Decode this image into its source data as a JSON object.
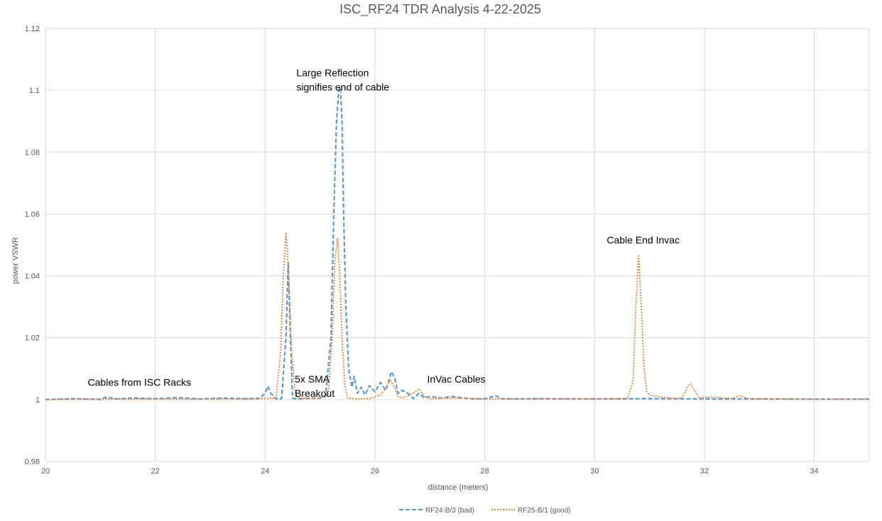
{
  "chart_data": {
    "type": "line",
    "title": "ISC_RF24 TDR Analysis 4-22-2025",
    "xlabel": "distance (meters)",
    "ylabel": "power VSWR",
    "xlim": [
      20,
      35
    ],
    "ylim": [
      0.98,
      1.12
    ],
    "x_ticks": [
      20,
      22,
      24,
      26,
      28,
      30,
      32,
      34
    ],
    "x_tick_labels": [
      "20",
      "22",
      "24",
      "26",
      "28",
      "30",
      "32",
      "34"
    ],
    "y_ticks": [
      0.98,
      1,
      1.02,
      1.04,
      1.06,
      1.08,
      1.1,
      1.12
    ],
    "y_tick_labels": [
      "0.98",
      "1",
      "1.02",
      "1.04",
      "1.06",
      "1.08",
      "1.1",
      "1.12"
    ],
    "grid": true,
    "legend_position": "bottom",
    "series": [
      {
        "name": "RF24-B/3 (bad)",
        "color": "#5B9BD5",
        "style": "dashed",
        "x": [
          20,
          20.5,
          21,
          21.1,
          21.3,
          21.6,
          22,
          22.4,
          22.8,
          23.2,
          23.6,
          23.9,
          24.0,
          24.05,
          24.1,
          24.2,
          24.3,
          24.38,
          24.42,
          24.46,
          24.5,
          24.6,
          24.8,
          25.0,
          25.1,
          25.2,
          25.25,
          25.3,
          25.34,
          25.37,
          25.4,
          25.43,
          25.47,
          25.52,
          25.58,
          25.62,
          25.68,
          25.75,
          25.82,
          25.9,
          26.0,
          26.1,
          26.2,
          26.3,
          26.36,
          26.42,
          26.5,
          26.6,
          26.7,
          26.8,
          26.9,
          27.0,
          27.2,
          27.4,
          27.6,
          27.8,
          28.0,
          28.2,
          28.3,
          28.6,
          29,
          30,
          31,
          32,
          33,
          34,
          35
        ],
        "y": [
          1.0,
          1.0003,
          1.0,
          1.0008,
          1.0002,
          1.0005,
          1.0003,
          1.0006,
          1.0002,
          1.0005,
          1.0003,
          1.0004,
          1.002,
          1.0043,
          1.002,
          1.0002,
          1.0003,
          1.02,
          1.0445,
          1.02,
          1.0004,
          1.0002,
          1.0004,
          1.0005,
          1.001,
          1.02,
          1.06,
          1.09,
          1.1,
          1.101,
          1.09,
          1.06,
          1.03,
          1.01,
          1.004,
          1.0075,
          1.002,
          1.004,
          1.0015,
          1.0045,
          1.0025,
          1.0055,
          1.003,
          1.009,
          1.007,
          1.002,
          1.003,
          1.002,
          1.0003,
          1.002,
          1.0005,
          1.001,
          1.0005,
          1.001,
          1.0005,
          1.0002,
          1.0003,
          1.0012,
          1.0003,
          1.0002,
          1.0003,
          1.0002,
          1.0003,
          1.0002,
          1.0002,
          1.0001,
          1.0001
        ]
      },
      {
        "name": "RF25-B/1 (good)",
        "color": "#ED7D31",
        "style": "dotted",
        "x": [
          20,
          21,
          22,
          23,
          23.8,
          24.2,
          24.28,
          24.33,
          24.38,
          24.43,
          24.48,
          24.55,
          24.6,
          25.0,
          25.15,
          25.22,
          25.27,
          25.32,
          25.36,
          25.4,
          25.45,
          25.5,
          25.6,
          25.9,
          26.1,
          26.2,
          26.27,
          26.35,
          26.42,
          26.5,
          26.7,
          26.8,
          26.9,
          27.0,
          27.5,
          28,
          29,
          30,
          30.6,
          30.7,
          30.75,
          30.8,
          30.85,
          30.9,
          30.95,
          31.0,
          31.2,
          31.5,
          31.6,
          31.7,
          31.75,
          31.8,
          31.9,
          32.2,
          32.5,
          32.65,
          32.8,
          33,
          34,
          35
        ],
        "y": [
          1.0,
          1.0002,
          1.0001,
          1.0001,
          1.0002,
          1.0005,
          1.015,
          1.04,
          1.054,
          1.04,
          1.015,
          1.002,
          1.0005,
          1.0003,
          1.002,
          1.02,
          1.045,
          1.052,
          1.04,
          1.02,
          1.005,
          1.0005,
          1.0003,
          1.0003,
          1.0015,
          1.0035,
          1.0065,
          1.004,
          1.001,
          1.0005,
          1.002,
          1.0035,
          1.001,
          1.0003,
          1.0005,
          1.0002,
          1.0002,
          1.0002,
          1.0003,
          1.006,
          1.03,
          1.0465,
          1.03,
          1.01,
          1.0025,
          1.0015,
          1.0008,
          1.0003,
          1.0008,
          1.0045,
          1.005,
          1.0035,
          1.0006,
          1.0008,
          1.0003,
          1.0012,
          1.0003,
          1.0002,
          1.0001,
          1.0001
        ]
      }
    ],
    "annotations": [
      {
        "lines": [
          "Large Reflection",
          "signifies end of cable"
        ],
        "x": 24.57,
        "y": 1.1045
      },
      {
        "lines": [
          "Cable End Invac"
        ],
        "x": 30.22,
        "y": 1.0505
      },
      {
        "lines": [
          "5x SMA",
          "Breakout"
        ],
        "x": 24.54,
        "y": 1.0055
      },
      {
        "lines": [
          "InVac Cables"
        ],
        "x": 26.95,
        "y": 1.0055
      },
      {
        "lines": [
          "Cables from ISC Racks"
        ],
        "x": 20.77,
        "y": 1.0045
      }
    ]
  }
}
